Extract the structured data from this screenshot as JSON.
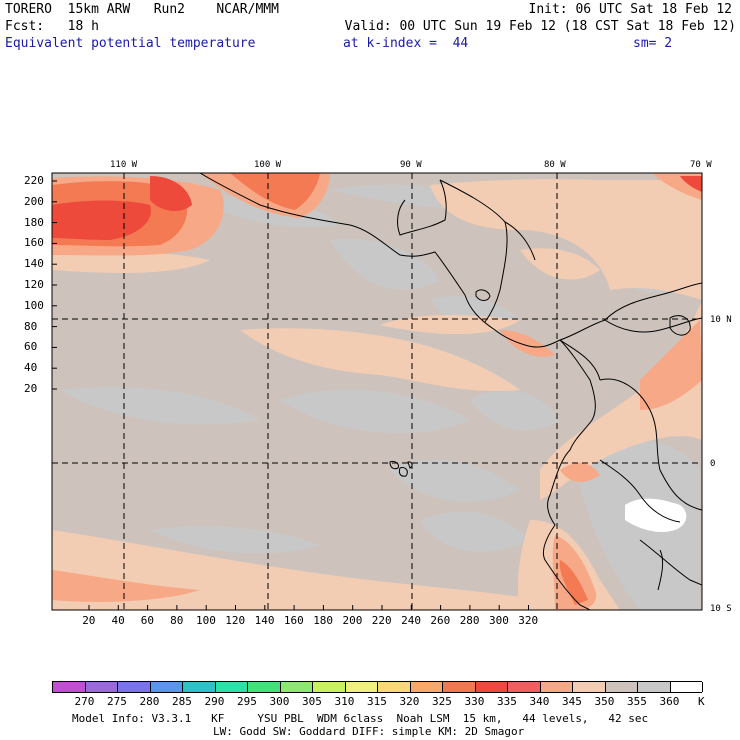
{
  "header": {
    "model": "TORERO  15km ARW   Run2    NCAR/MMM",
    "init": "Init: 06 UTC Sat 18 Feb 12",
    "fcst": "Fcst:   18 h",
    "valid": "Valid: 00 UTC Sun 19 Feb 12 (18 CST Sat 18 Feb 12)",
    "field": "Equivalent potential temperature",
    "level": "at k-index =  44",
    "smooth": "sm= 2"
  },
  "map": {
    "lon_labels": [
      "110 W",
      "100 W",
      "90 W",
      "80 W",
      "70 W"
    ],
    "lat_labels": [
      "10 N",
      "0",
      "10 S"
    ],
    "y_ticks": [
      "220",
      "200",
      "180",
      "160",
      "140",
      "120",
      "100",
      "80",
      "60",
      "40",
      "20"
    ],
    "x_ticks": [
      "20",
      "40",
      "60",
      "80",
      "100",
      "120",
      "140",
      "160",
      "180",
      "200",
      "220",
      "240",
      "260",
      "280",
      "300",
      "320"
    ],
    "colors": {
      "background": "#cdc3bc",
      "gray": "#c8c8c8",
      "light_salmon": "#f2cdb4",
      "salmon": "#f7a886",
      "orange": "#f47a54",
      "red": "#ee4a3c"
    }
  },
  "colorbar": {
    "levels": [
      "270",
      "275",
      "280",
      "285",
      "290",
      "295",
      "300",
      "305",
      "310",
      "315",
      "320",
      "325",
      "330",
      "335",
      "340",
      "345",
      "350",
      "355",
      "360"
    ],
    "unit": "K",
    "colors": [
      "#c050d0",
      "#9a6ad8",
      "#7a74e8",
      "#5a96ea",
      "#30c0c8",
      "#2ce0a8",
      "#44e07a",
      "#8ce870",
      "#c8f060",
      "#f0f080",
      "#f8d878",
      "#f8a868",
      "#f07a50",
      "#ee4a3c",
      "#ee6060",
      "#f7a886",
      "#f2cdb4",
      "#cdc3bc",
      "#c8c8c8",
      "#ffffff"
    ]
  },
  "footer": {
    "line1": "Model Info: V3.3.1   KF     YSU PBL  WDM 6class  Noah LSM  15 km,   44 levels,   42 sec",
    "line2": "LW: Godd SW: Goddard DIFF: simple KM: 2D Smagor"
  }
}
